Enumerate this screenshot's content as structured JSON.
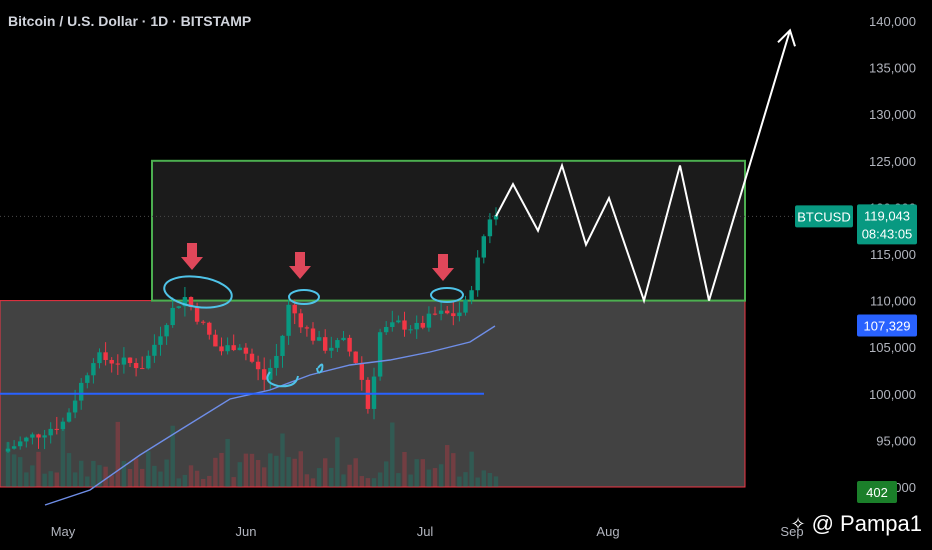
{
  "header": {
    "title": "Bitcoin / U.S. Dollar · 1D · BITSTAMP"
  },
  "watermark": {
    "handle": "@ Pampa1",
    "logo_icon": "binance-diamond-icon"
  },
  "chart_data": {
    "type": "candlestick",
    "symbol": "BTCUSD",
    "y_ticks": [
      "140,000",
      "135,000",
      "130,000",
      "125,000",
      "120,000",
      "115,000",
      "110,000",
      "105,000",
      "100,000",
      "95,000",
      "90,000"
    ],
    "y_tick_values": [
      140000,
      135000,
      130000,
      125000,
      120000,
      115000,
      110000,
      105000,
      100000,
      95000,
      90000
    ],
    "x_ticks": [
      "May",
      "Jun",
      "Jul",
      "Aug",
      "Sep"
    ],
    "ylim": [
      88000,
      142500
    ],
    "price_label": {
      "symbol": "BTCUSD",
      "price": "119,043",
      "countdown": "08:43:05",
      "value": 119043
    },
    "ma_label": {
      "text": "107,329",
      "value": 107329
    },
    "volume_label": "402",
    "zones": [
      {
        "name": "consolidation-box",
        "y_low": 110000,
        "y_high": 125000,
        "color": "#4caf50"
      },
      {
        "name": "support-zone",
        "y_low": 90000,
        "y_high": 110000,
        "color": "#f23645"
      }
    ],
    "support_line": {
      "y": 100000,
      "color": "#2962ff"
    },
    "projection_peaks": [
      122500,
      117500,
      124500,
      116000,
      121000,
      110000,
      124500,
      110000,
      139000
    ],
    "annotations": [
      "arrow-1",
      "arrow-2",
      "arrow-3"
    ],
    "colors": {
      "up": "#089981",
      "down": "#f23645",
      "ma": "#6f8ee8",
      "circle": "#4fc3e8",
      "box": "#4caf50",
      "arrow": "#e0475a"
    }
  }
}
